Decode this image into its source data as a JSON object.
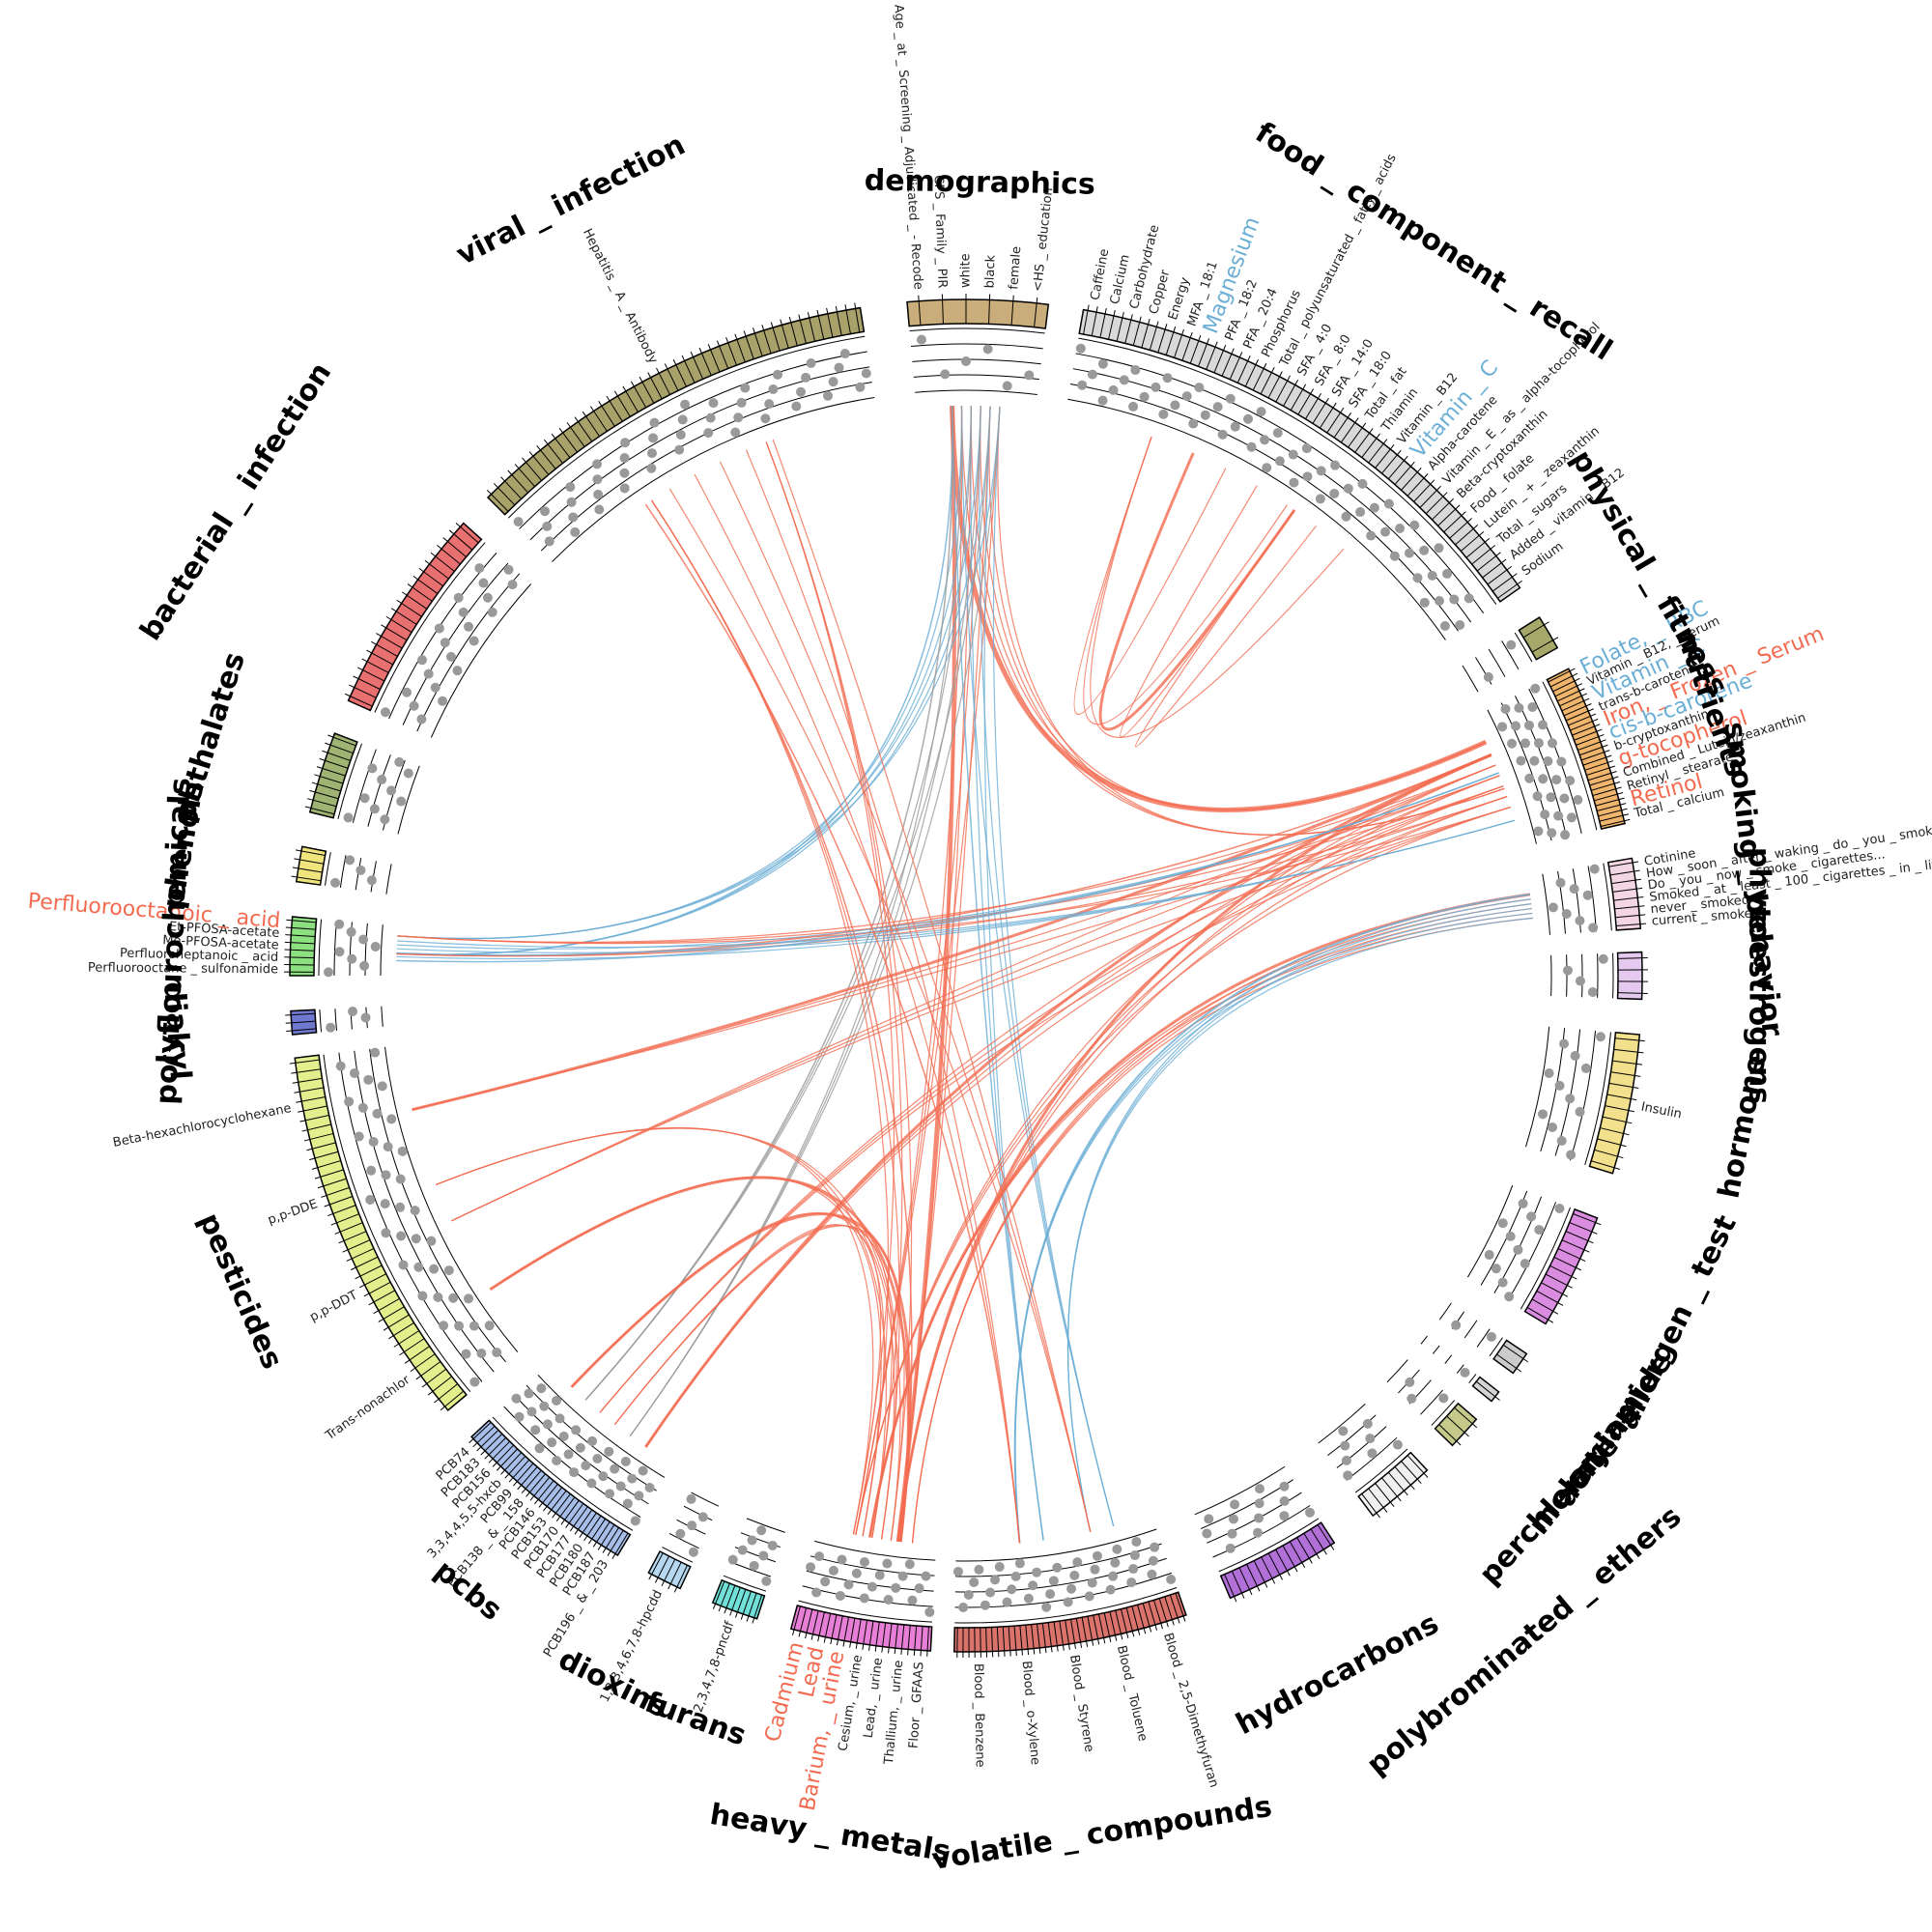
{
  "diagram": {
    "type": "circos-chord",
    "groups": [
      {
        "name": "demographics",
        "color": "#c9ad7a",
        "start": -5,
        "end": 7,
        "n": 6
      },
      {
        "name": "food _ component _ recall",
        "color": "#d9d9d9",
        "start": 10,
        "end": 55,
        "n": 60
      },
      {
        "name": "physical _ fitness",
        "color": "#a6a86a",
        "start": 58,
        "end": 61,
        "n": 2
      },
      {
        "name": "nutrients",
        "color": "#f0b56c",
        "start": 63,
        "end": 77,
        "n": 30
      },
      {
        "name": "smoking _ behavior",
        "color": "#f3d6e3",
        "start": 80,
        "end": 86,
        "n": 8
      },
      {
        "name": "phytoestrogens",
        "color": "#e5c9ef",
        "start": 88,
        "end": 92,
        "n": 4
      },
      {
        "name": "hormone",
        "color": "#f2e08c",
        "start": 95,
        "end": 107,
        "n": 12
      },
      {
        "name": "allergen _ test",
        "color": "#d98ce0",
        "start": 111,
        "end": 121,
        "n": 12
      },
      {
        "name": "acrylamide",
        "color": "#cccccc",
        "start": 124,
        "end": 126,
        "n": 2
      },
      {
        "name": "melamine",
        "color": "#d4d4d4",
        "start": 128,
        "end": 129,
        "n": 1
      },
      {
        "name": "perchlorate",
        "color": "#c5c98a",
        "start": 131,
        "end": 134,
        "n": 3
      },
      {
        "name": "polybrominated _ ethers",
        "color": "#f0f0f0",
        "start": 137,
        "end": 143,
        "n": 8
      },
      {
        "name": "hydrocarbons",
        "color": "#b070d8",
        "start": 147,
        "end": 157,
        "n": 14
      },
      {
        "name": "volatile _ compounds",
        "color": "#d9736b",
        "start": 161,
        "end": 181,
        "n": 40
      },
      {
        "name": "heavy _ metals",
        "color": "#e87fd6",
        "start": 183,
        "end": 195,
        "n": 22
      },
      {
        "name": "furans",
        "color": "#70e0d8",
        "start": 198,
        "end": 202,
        "n": 8
      },
      {
        "name": "dioxins",
        "color": "#b5d8f0",
        "start": 205,
        "end": 208,
        "n": 5
      },
      {
        "name": "pcbs",
        "color": "#a7bfe8",
        "start": 211,
        "end": 227,
        "n": 34
      },
      {
        "name": "pesticides",
        "color": "#e2ef8c",
        "start": 230,
        "end": 263,
        "n": 40
      },
      {
        "name": "diakyl",
        "color": "#6f77cf",
        "start": 265,
        "end": 267,
        "n": 3
      },
      {
        "name": "polyflourochemicals",
        "color": "#8de07f",
        "start": 270,
        "end": 275,
        "n": 8
      },
      {
        "name": "phenols",
        "color": "#efe57c",
        "start": 278,
        "end": 281,
        "n": 4
      },
      {
        "name": "phthalates",
        "color": "#9fb473",
        "start": 284,
        "end": 291,
        "n": 10
      },
      {
        "name": "bacterial _ infection",
        "color": "#e87070",
        "start": 294,
        "end": 312,
        "n": 22
      },
      {
        "name": "viral _ infection",
        "color": "#a8a26a",
        "start": 315,
        "end": 351,
        "n": 45
      }
    ],
    "var_labels": [
      {
        "group": "demographics",
        "items": [
          "Age _ at _ Screening _ Adjudicated _ - Recode",
          "CPS _ Family _ PIR",
          "white",
          "black",
          "female",
          "<HS _ education"
        ]
      },
      {
        "group": "food _ component _ recall",
        "items": [
          "Caffeine",
          "Calcium",
          "Carbohydrate",
          "Copper",
          "Energy",
          "MFA _ 18:1",
          "Magnesium",
          "PFA _ 18:2",
          "PFA _ 20:4",
          "Phosphorus",
          "Total _ polyunsaturated _ fatty _ acids",
          "SFA _ 4:0",
          "SFA _ 8:0",
          "SFA _ 14:0",
          "SFA _ 18:0",
          "Total _ fat",
          "Thiamin",
          "Vitamin _ B12",
          "Vitamin _ C",
          "Alpha-carotene",
          "Vitamin _ E _ as _ alpha-tocopherol",
          "Beta-cryptoxanthin",
          "Food _ folate",
          "Lutein _ + _ zeaxanthin",
          "Total _ sugars",
          "Added _ vitamin _ B12",
          "Sodium"
        ]
      },
      {
        "group": "nutrients",
        "items": [
          "Folate, _ RBC",
          "Vitamin _ B12, _ serum",
          "Vitamin _ C",
          "trans-b-carotene",
          "Iron, _ Frozen _ Serum",
          "cis-b-carotene",
          "b-cryptoxanthin",
          "g-tocopherol",
          "Combined _ Lutein/zeaxanthin",
          "Retinyl _ stearate",
          "Retinol",
          "Total _ calcium"
        ]
      },
      {
        "group": "smoking _ behavior",
        "items": [
          "Cotinine",
          "How _ soon _ after _ waking _ do _ you _ smoke",
          "Do _ you _ now _ smoke _ cigarettes...",
          "Smoked _ at _ least _ 100 _ cigarettes _ in _ life",
          "never _ smoked",
          "current _ smoker"
        ]
      },
      {
        "group": "hormone",
        "items": [
          "Insulin"
        ]
      },
      {
        "group": "volatile _ compounds",
        "items": [
          "Blood _ 2,5-Dimethyfuran",
          "Blood _ Toluene",
          "Blood _ Styrene",
          "Blood _ o-Xylene",
          "Blood _ Benzene"
        ]
      },
      {
        "group": "heavy _ metals",
        "items": [
          "Floor _ GFAAS",
          "Thallium, _ urine",
          "Lead, _ urine",
          "Cesium, _ urine",
          "Barium, _ urine",
          "Lead",
          "Cadmium"
        ]
      },
      {
        "group": "furans",
        "items": [
          "2,3,4,7,8-pncdf"
        ]
      },
      {
        "group": "dioxins",
        "items": [
          "1,2,3,4,6,7,8-hpcdd"
        ]
      },
      {
        "group": "pcbs",
        "items": [
          "PCB196 _ & _ 203",
          "PCB187",
          "PCB180",
          "PCB177",
          "PCB170",
          "PCB153",
          "PCB146",
          "PCB138 _ & _ 158",
          "PCB99",
          "3,3,4,4,5,5-hxcb",
          "PCB156",
          "PCB183",
          "PCB74"
        ]
      },
      {
        "group": "pesticides",
        "items": [
          "Trans-nonachlor",
          "p,p-DDT",
          "p,p-DDE",
          "Beta-hexachlorocyclohexane"
        ]
      },
      {
        "group": "polyflourochemicals",
        "items": [
          "Perfluorooctane _ sulfonamide",
          "Perfluoroheptanoic _ acid",
          "Me-PFOSA-acetate",
          "Et-PFOSA-acetate",
          "Perfluorooctanoic _ acid"
        ]
      },
      {
        "group": "viral _ infection",
        "items": [
          "Hepatitis _ A _ Antibody"
        ]
      }
    ],
    "highlighted_labels": [
      {
        "text": "Magnesium",
        "color": "#6baed6"
      },
      {
        "text": "Vitamin _ C",
        "color": "#6baed6"
      },
      {
        "text": "Folate, _ RBC",
        "color": "#6baed6"
      },
      {
        "text": "Iron, _ Frozen _ Serum",
        "color": "#f26b50"
      },
      {
        "text": "cis-b-carotene",
        "color": "#6baed6"
      },
      {
        "text": "g-tocopherol",
        "color": "#f26b50"
      },
      {
        "text": "Retinol",
        "color": "#f26b50"
      },
      {
        "text": "Perfluorooctanoic _ acid",
        "color": "#f26b50"
      },
      {
        "text": "Barium, _ urine",
        "color": "#f26b50"
      },
      {
        "text": "Lead",
        "color": "#f26b50"
      },
      {
        "text": "Cadmium",
        "color": "#f26b50"
      }
    ],
    "colors": {
      "positive": "#f26b50",
      "negative": "#6baed6",
      "neutral": "#999999"
    }
  }
}
